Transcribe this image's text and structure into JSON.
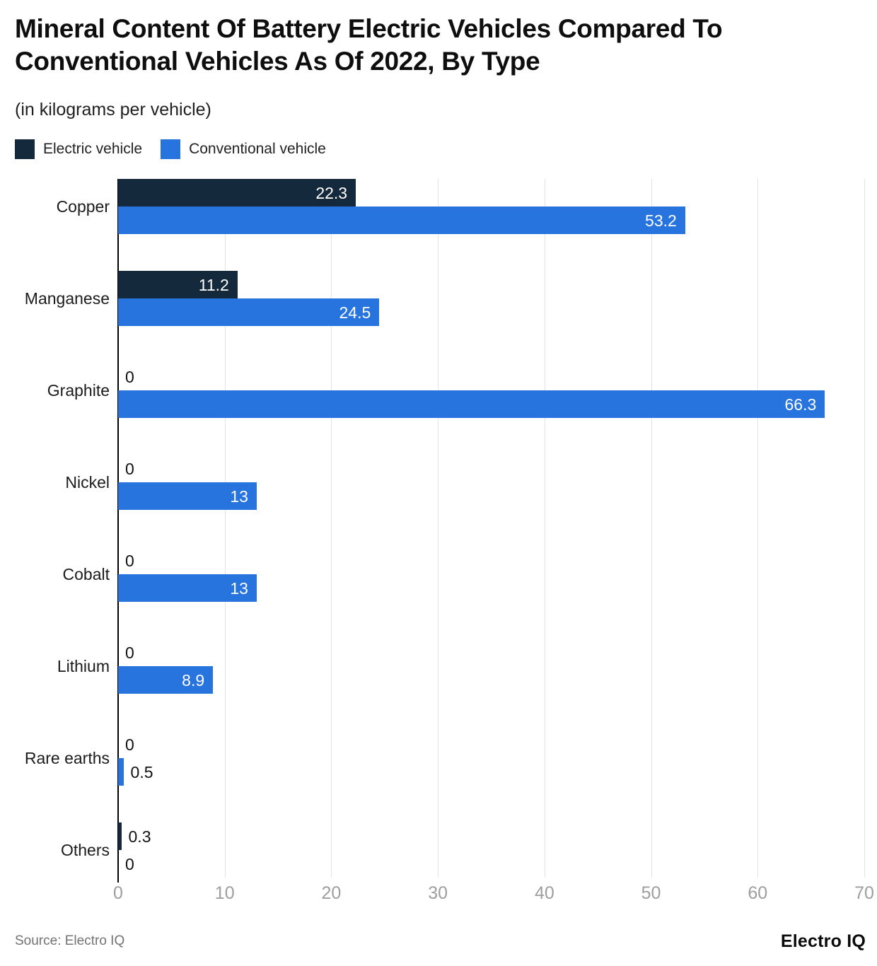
{
  "header": {
    "title": "Mineral Content Of Battery Electric Vehicles Compared To\nConventional Vehicles As Of 2022, By Type",
    "subtitle": "(in kilograms per vehicle)"
  },
  "legend": {
    "items": [
      {
        "label": "Electric vehicle",
        "color": "#15293D"
      },
      {
        "label": "Conventional vehicle",
        "color": "#2774DF"
      }
    ]
  },
  "chart_data": {
    "type": "bar",
    "orientation": "horizontal",
    "title": "Mineral Content Of Battery Electric Vehicles Compared To Conventional Vehicles As Of 2022, By Type",
    "subtitle": "(in kilograms per vehicle)",
    "categories": [
      "Copper",
      "Manganese",
      "Graphite",
      "Nickel",
      "Cobalt",
      "Lithium",
      "Rare earths",
      "Others"
    ],
    "series": [
      {
        "name": "Electric vehicle",
        "color": "#15293D",
        "values": [
          22.3,
          11.2,
          0,
          0,
          0,
          0,
          0,
          0.3
        ]
      },
      {
        "name": "Conventional vehicle",
        "color": "#2774DF",
        "values": [
          53.2,
          24.5,
          66.3,
          13,
          13,
          8.9,
          0.5,
          0
        ]
      }
    ],
    "xlabel": "",
    "ylabel": "",
    "xlim": [
      0,
      70
    ],
    "xticks": [
      0,
      10,
      20,
      30,
      40,
      50,
      60,
      70
    ],
    "grid": true,
    "legend_position": "top-left",
    "value_labels": true
  },
  "style": {
    "grid_color": "#e2e2e2",
    "axis_color": "#000000",
    "tick_text_color": "#9e9e9e",
    "value_inside_color": "#ffffff",
    "value_outside_color": "#111111"
  },
  "footer": {
    "source": "Source: Electro IQ",
    "brand": "Electro IQ"
  }
}
